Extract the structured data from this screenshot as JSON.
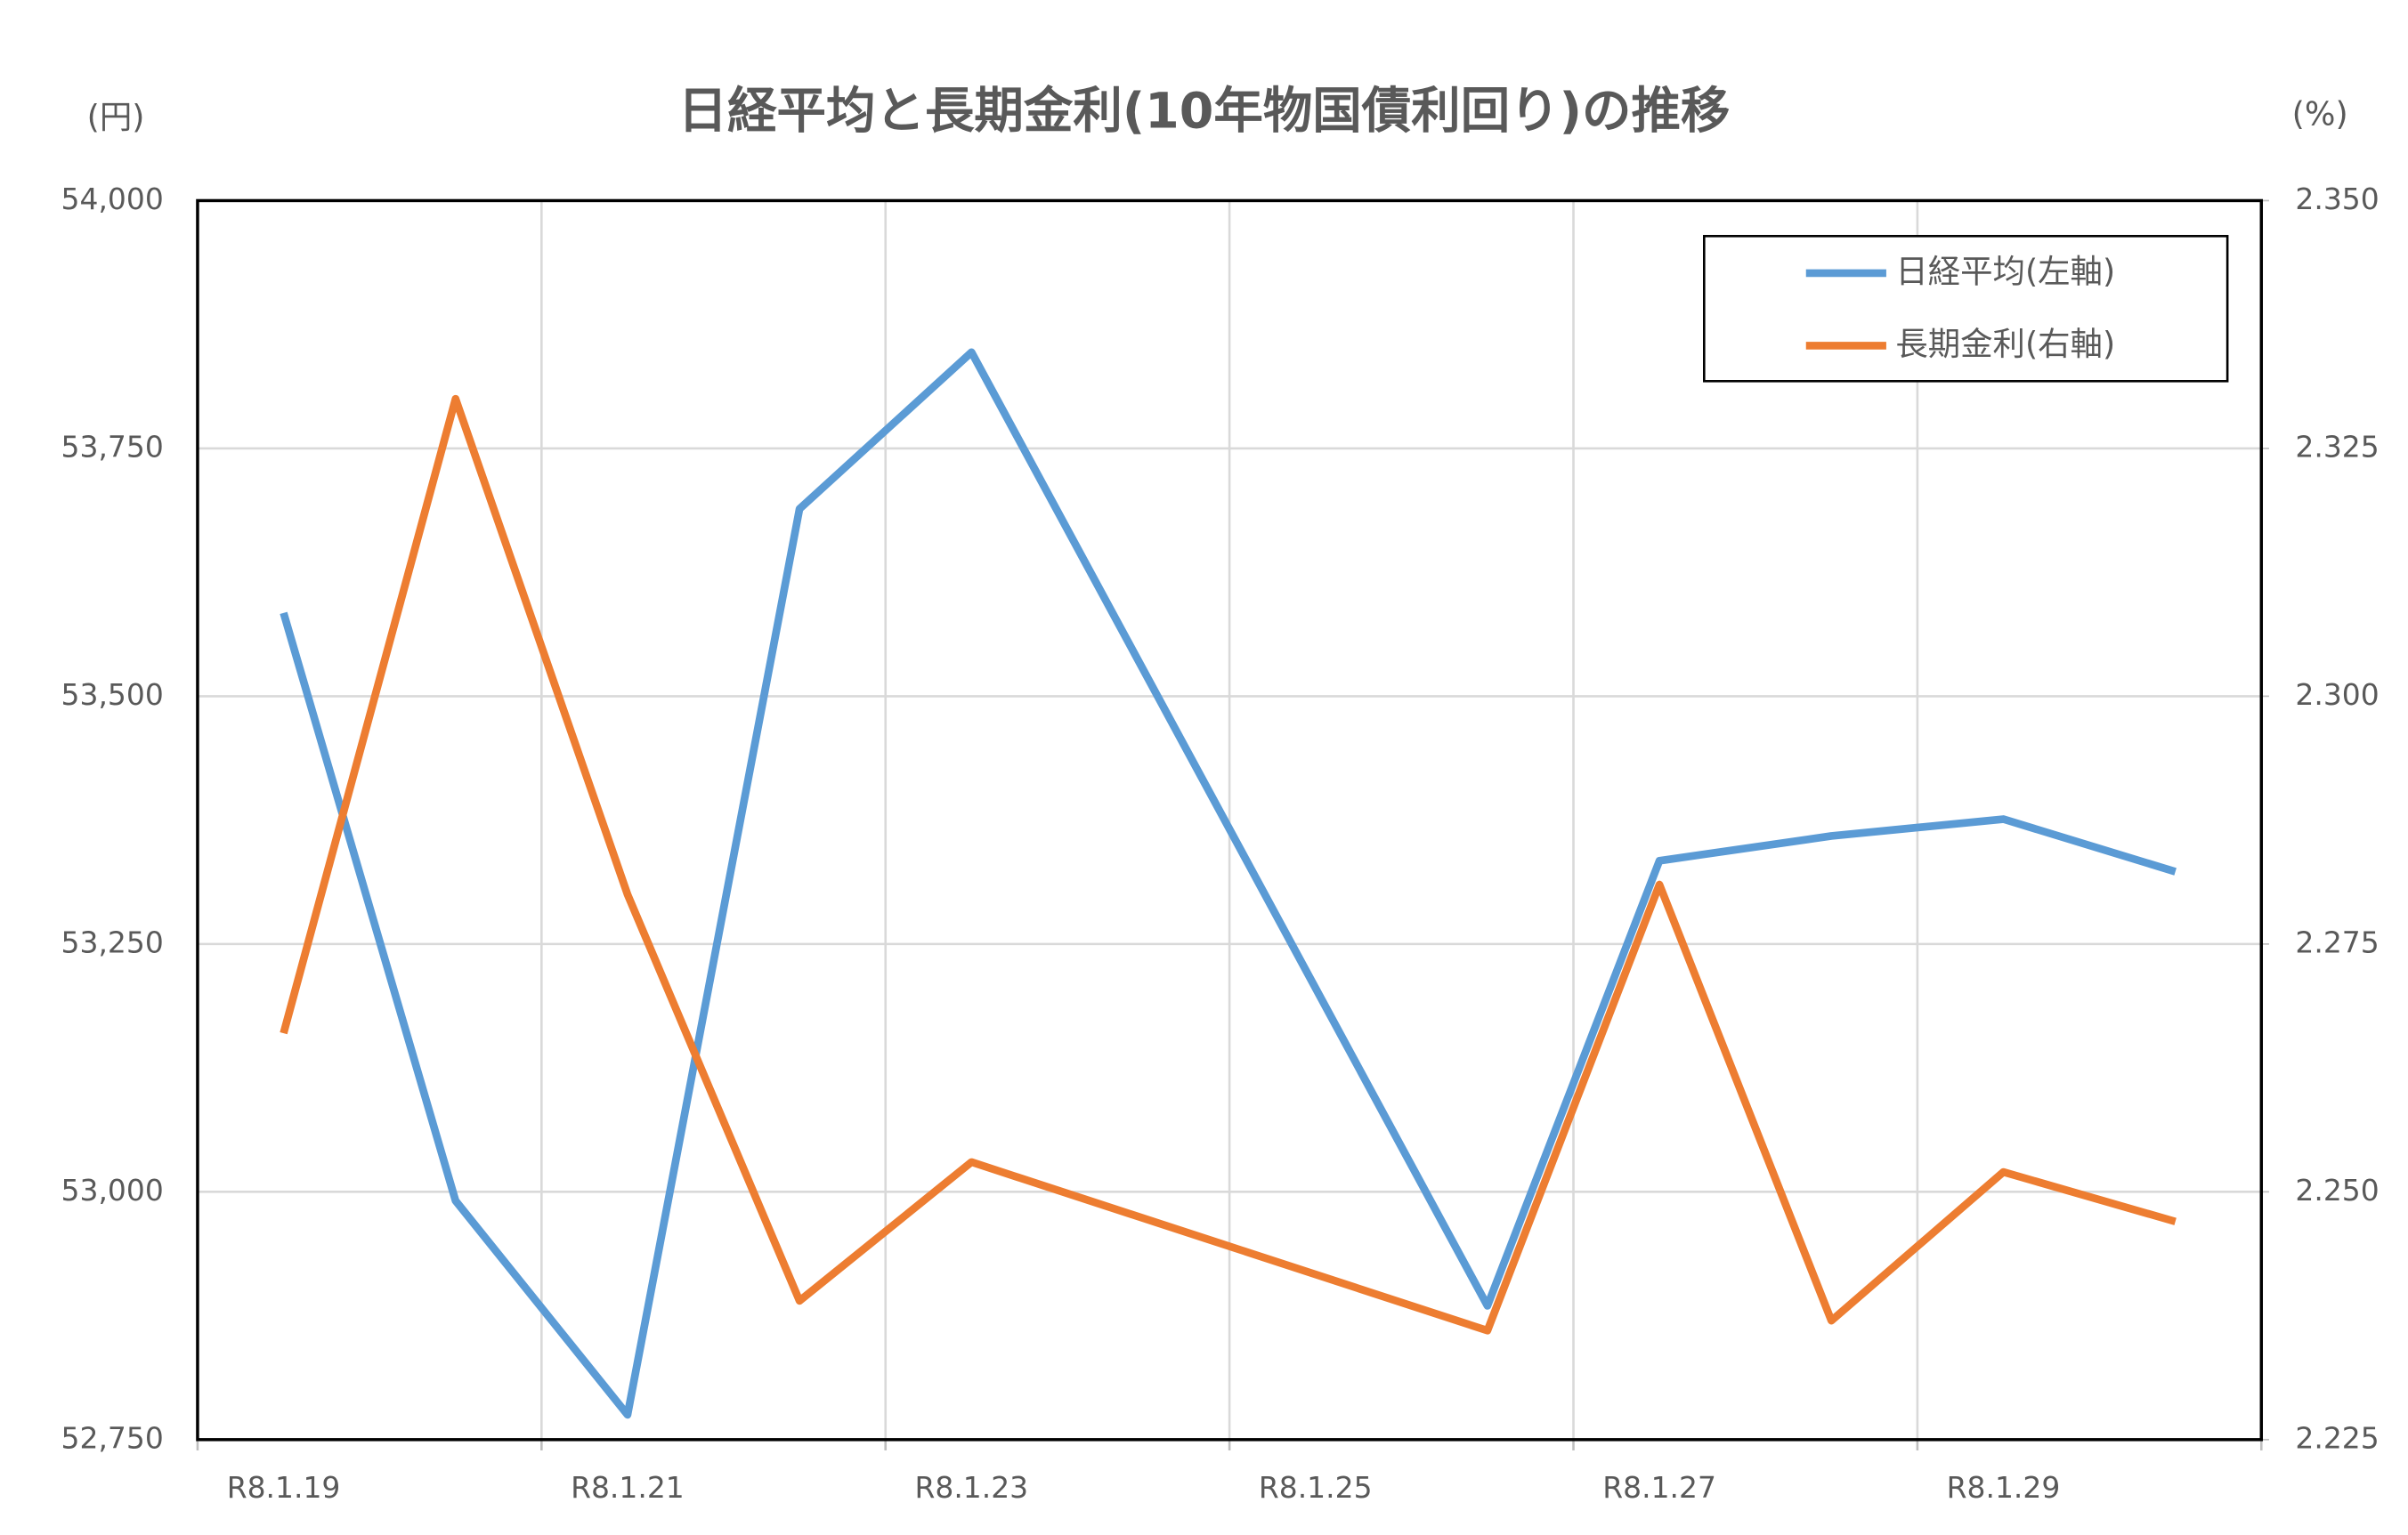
{
  "chart_data": {
    "type": "line",
    "title": "日経平均と長期金利(10年物国債利回り)の推移",
    "y_label": "(円)",
    "y2_label": "(%)",
    "categories": [
      "R8.1.19",
      null,
      "R8.1.21",
      null,
      "R8.1.23",
      null,
      "R8.1.25",
      null,
      "R8.1.27",
      null,
      "R8.1.29",
      null
    ],
    "series": [
      {
        "name": "日経平均(左軸)",
        "color": "#5b9bd5",
        "values": [
          53584,
          52991,
          52775,
          53689,
          53847,
          null,
          null,
          52885,
          53334,
          53359,
          53376,
          53323
        ]
      },
      {
        "name": "長期金利(右軸)",
        "color": "#ed7d31",
        "axis": "y2",
        "values": [
          2.266,
          2.33,
          2.28,
          2.239,
          2.253,
          null,
          null,
          2.236,
          2.281,
          2.237,
          2.252,
          2.247
        ]
      }
    ],
    "ylim": [
      52750,
      54000
    ],
    "yticks": [
      {
        "value": 52750,
        "label": "52,750"
      },
      {
        "value": 53000,
        "label": "53,000"
      },
      {
        "value": 53250,
        "label": "53,250"
      },
      {
        "value": 53500,
        "label": "53,500"
      },
      {
        "value": 53750,
        "label": "53,750"
      },
      {
        "value": 54000,
        "label": "54,000"
      }
    ],
    "y2lim": [
      2.225,
      2.35
    ],
    "y2ticks": [
      2.225,
      {
        "value": 2.25,
        "label": "2.250"
      },
      2.275,
      {
        "value": 2.3,
        "label": "2.300"
      },
      2.325,
      {
        "value": 2.35,
        "label": "2.350"
      }
    ],
    "grid": true,
    "connect_gaps": true,
    "legend": "upper right"
  }
}
